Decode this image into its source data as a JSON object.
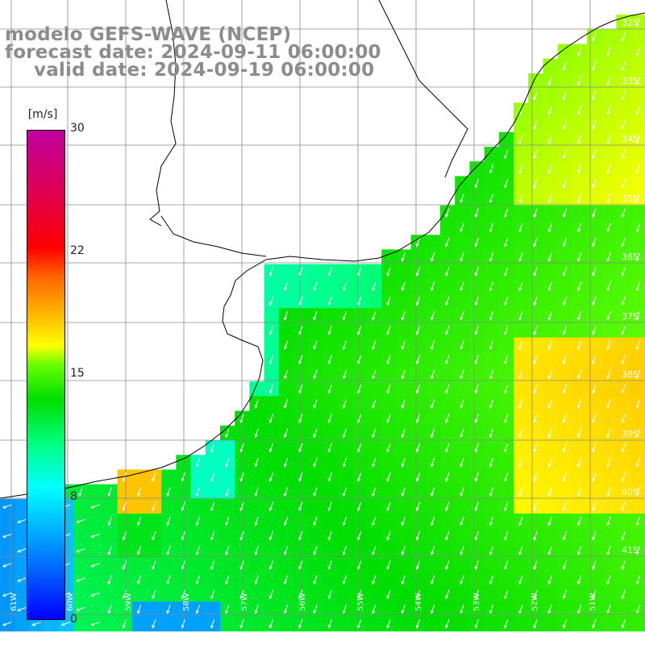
{
  "title": {
    "line1": "modelo GEFS-WAVE (NCEP)",
    "line2": "forecast date: 2024-09-11 06:00:00",
    "line3": "valid date: 2024-09-19 06:00:00"
  },
  "colorbar": {
    "unit": "[m/s]",
    "ticks": [
      "30",
      "22",
      "15",
      "8",
      "0"
    ],
    "range": [
      0,
      30
    ]
  },
  "map": {
    "lat_labels": [
      "32S",
      "33S",
      "34S",
      "35S",
      "36S",
      "37S",
      "38S",
      "39S",
      "40S",
      "41S"
    ],
    "lon_labels": [
      "61W",
      "60W",
      "59W",
      "58W",
      "57W",
      "56W",
      "55W",
      "54W",
      "53W",
      "52W",
      "51W"
    ],
    "colors": {
      "land": "#ffffff",
      "coast": "#000000",
      "grid": "#8a8a8a",
      "wind_arrow": "#ffffff"
    },
    "wind_field_regions": [
      {
        "area": "open ocean east",
        "speed_ms": 14
      },
      {
        "area": "north east offshore",
        "speed_ms": 13
      },
      {
        "area": "Rio de la Plata",
        "speed_ms": 9
      },
      {
        "area": "south west coast jet",
        "speed_ms": 19
      },
      {
        "area": "far south west",
        "speed_ms": 5
      }
    ]
  }
}
